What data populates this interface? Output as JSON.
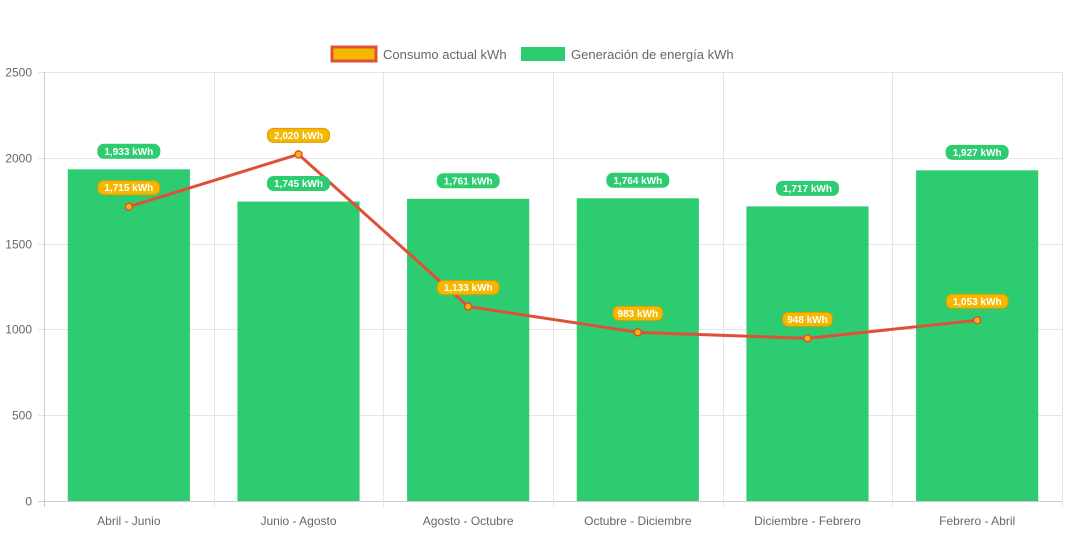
{
  "chart_data": {
    "type": "bar",
    "title": "",
    "xlabel": "",
    "ylabel": "",
    "ylim": [
      0,
      2500
    ],
    "yticks": [
      0,
      500,
      1000,
      1500,
      2000,
      2500
    ],
    "grid": true,
    "legend_position": "top-center",
    "categories": [
      "Abril - Junio",
      "Junio - Agosto",
      "Agosto - Octubre",
      "Octubre - Diciembre",
      "Diciembre - Febrero",
      "Febrero - Abril"
    ],
    "series": [
      {
        "name": "Consumo actual kWh",
        "kind": "line",
        "values": [
          1715,
          2020,
          1133,
          983,
          948,
          1053
        ],
        "labels": [
          "1,715 kWh",
          "2,020 kWh",
          "1,133 kWh",
          "983 kWh",
          "948 kWh",
          "1,053 kWh"
        ],
        "color": "#e05038",
        "fill": "#f5b800"
      },
      {
        "name": "Generación de energía kWh",
        "kind": "bar",
        "values": [
          1933,
          1745,
          1761,
          1764,
          1717,
          1927
        ],
        "labels": [
          "1,933 kWh",
          "1,745 kWh",
          "1,761 kWh",
          "1,764 kWh",
          "1,717 kWh",
          "1,927 kWh"
        ],
        "color": "#2ecc71"
      }
    ]
  }
}
